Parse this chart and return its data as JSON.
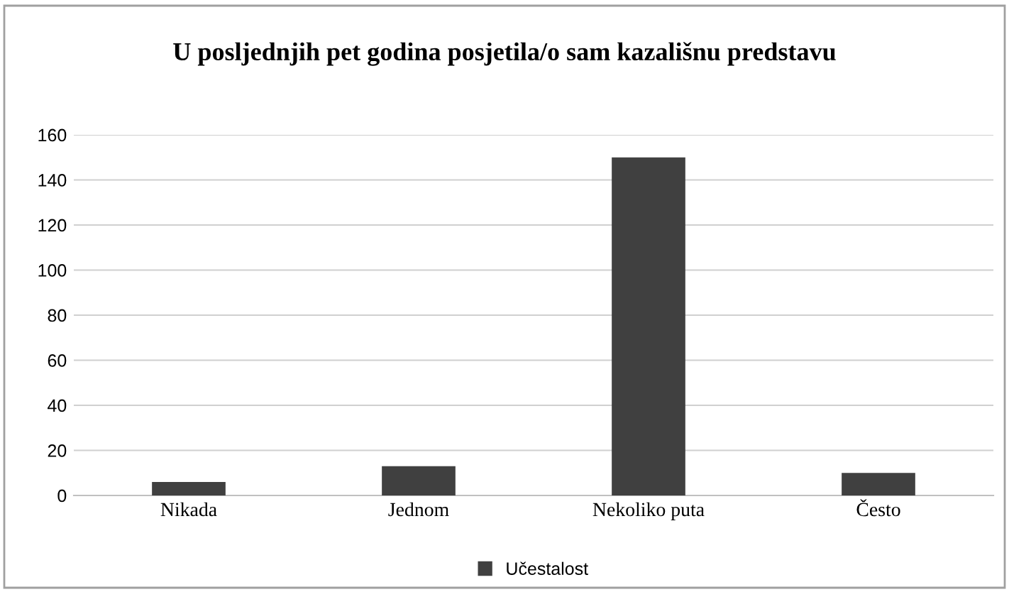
{
  "chart_data": {
    "type": "bar",
    "title": "U posljednjih pet godina posjetila/o sam kazališnu predstavu",
    "categories": [
      "Nikada",
      "Jednom",
      "Nekoliko puta",
      "Često"
    ],
    "series": [
      {
        "name": "Učestalost",
        "color": "#404040",
        "values": [
          6,
          13,
          150,
          10
        ]
      }
    ],
    "ylim": [
      0,
      160
    ],
    "yticks": [
      0,
      20,
      40,
      60,
      80,
      100,
      120,
      140,
      160
    ],
    "grid": "y",
    "legend": "bottom"
  }
}
